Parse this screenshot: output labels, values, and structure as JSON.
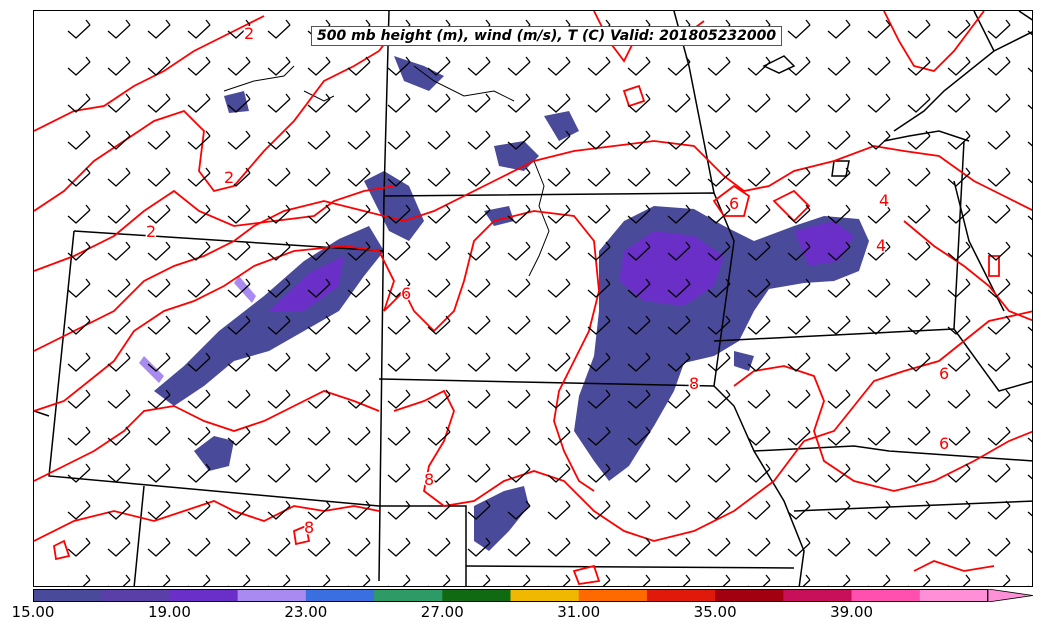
{
  "title": "500 mb height (m), wind (m/s), T (C) Valid: 201805232000",
  "colorbar": {
    "colors": [
      "#4a4a9a",
      "#5a3fa8",
      "#6a2fc6",
      "#a98af0",
      "#3a6fe0",
      "#2e9a66",
      "#0f6a12",
      "#f0b800",
      "#ff6a00",
      "#e01a0a",
      "#a00010",
      "#c8105a",
      "#ff50b0",
      "#ff90d8"
    ],
    "tick_labels": [
      "15.00",
      "19.00",
      "23.00",
      "27.00",
      "31.00",
      "35.00",
      "39.00"
    ],
    "extend": "max"
  },
  "map": {
    "contour_color": "#ff0000",
    "contour_labels": [
      "2",
      "2",
      "2",
      "6",
      "6",
      "6",
      "4",
      "4",
      "6",
      "8",
      "8",
      "8"
    ],
    "fill_color": "#4a4a9a",
    "fill_core_color": "#6a2fc6",
    "highlight_color": "#a98af0",
    "barb_color": "#000000",
    "boundary_color": "#000000"
  }
}
